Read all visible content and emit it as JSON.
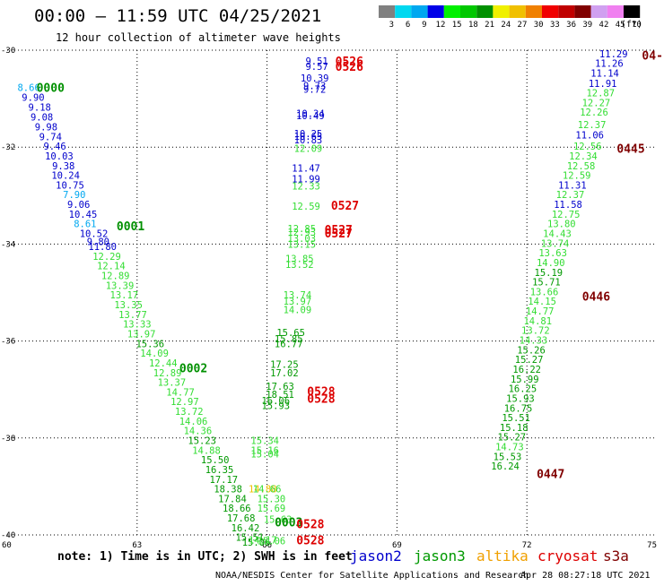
{
  "header": {
    "title": "00:00 – 11:59 UTC 04/25/2021",
    "subtitle": "12 hour collection of altimeter wave heights"
  },
  "color_scale": {
    "labels": [
      "3",
      "6",
      "9",
      "12",
      "15",
      "18",
      "21",
      "24",
      "27",
      "30",
      "33",
      "36",
      "39",
      "42",
      "45",
      "70"
    ],
    "unit": "(ft)",
    "colors": [
      "#808080",
      "#00d8f0",
      "#00a8f0",
      "#0000e8",
      "#00f000",
      "#00c800",
      "#009000",
      "#f0f000",
      "#f0c000",
      "#f08000",
      "#f00000",
      "#c00000",
      "#800000",
      "#d0a0f0",
      "#f080f0",
      "#000000"
    ]
  },
  "footer": {
    "note": "note: 1) Time is in UTC; 2) SWH is in feet",
    "credit": "NOAA/NESDIS Center for Satellite Applications and Research",
    "timestamp": "Apr 28 08:27:18 UTC 2021"
  },
  "chart_data": {
    "type": "scatter",
    "xlim": [
      60,
      75
    ],
    "ylim": [
      -40,
      -30
    ],
    "x_ticks": [
      60,
      63,
      66,
      69,
      72,
      75
    ],
    "y_ticks": [
      -30,
      -32,
      -34,
      -36,
      -38,
      -40
    ],
    "grid": true,
    "legend_placement": "bottom-right",
    "series": [
      {
        "name": "jason2",
        "color": "#0000cc"
      },
      {
        "name": "jason3",
        "color": "#009900"
      },
      {
        "name": "altika",
        "color": "#f0a000"
      },
      {
        "name": "cryosat",
        "color": "#dd0000"
      },
      {
        "name": "s3a",
        "color": "#800000"
      }
    ],
    "track_labels": [
      {
        "text": "0000",
        "x": 61.0,
        "y": -30.77,
        "color": "#009000"
      },
      {
        "text": "0001",
        "x": 62.85,
        "y": -33.62,
        "color": "#009000"
      },
      {
        "text": "0002",
        "x": 64.3,
        "y": -36.55,
        "color": "#009000"
      },
      {
        "text": "0003",
        "x": 66.5,
        "y": -39.73,
        "color": "#009000"
      },
      {
        "text": "0445",
        "x": 74.4,
        "y": -32.02,
        "color": "#800000"
      },
      {
        "text": "0446",
        "x": 73.6,
        "y": -35.07,
        "color": "#800000"
      },
      {
        "text": "0447",
        "x": 72.55,
        "y": -38.73,
        "color": "#800000"
      },
      {
        "text": "04-",
        "x": 74.9,
        "y": -30.1,
        "color": "#800000"
      },
      {
        "text": "0526",
        "x": 67.9,
        "y": -30.22,
        "color": "#dd0000"
      },
      {
        "text": "0526",
        "x": 67.9,
        "y": -30.33,
        "color": "#dd0000"
      },
      {
        "text": "0527",
        "x": 67.8,
        "y": -33.2,
        "color": "#dd0000"
      },
      {
        "text": "0527",
        "x": 67.65,
        "y": -33.7,
        "color": "#dd0000"
      },
      {
        "text": "0527",
        "x": 67.65,
        "y": -33.77,
        "color": "#dd0000"
      },
      {
        "text": "0528",
        "x": 67.25,
        "y": -37.03,
        "color": "#dd0000"
      },
      {
        "text": "0528",
        "x": 67.25,
        "y": -37.18,
        "color": "#dd0000"
      },
      {
        "text": "0528",
        "x": 67.0,
        "y": -39.77,
        "color": "#dd0000"
      },
      {
        "text": "0528",
        "x": 67.0,
        "y": -40.1,
        "color": "#dd0000"
      }
    ],
    "points": [
      {
        "x": 60.5,
        "y": -30.77,
        "v": "8.66",
        "c": "#00a8f0"
      },
      {
        "x": 60.6,
        "y": -30.97,
        "v": "9.90",
        "c": "#0000cc"
      },
      {
        "x": 60.75,
        "y": -31.17,
        "v": "9.18",
        "c": "#0000cc"
      },
      {
        "x": 60.8,
        "y": -31.38,
        "v": "9.08",
        "c": "#0000cc"
      },
      {
        "x": 60.9,
        "y": -31.58,
        "v": "9.98",
        "c": "#0000cc"
      },
      {
        "x": 61.0,
        "y": -31.78,
        "v": "9.74",
        "c": "#0000cc"
      },
      {
        "x": 61.1,
        "y": -31.98,
        "v": "9.46",
        "c": "#0000cc"
      },
      {
        "x": 61.2,
        "y": -32.18,
        "v": "10.03",
        "c": "#0000cc"
      },
      {
        "x": 61.3,
        "y": -32.38,
        "v": "9.38",
        "c": "#0000cc"
      },
      {
        "x": 61.35,
        "y": -32.58,
        "v": "10.24",
        "c": "#0000cc"
      },
      {
        "x": 61.45,
        "y": -32.78,
        "v": "10.75",
        "c": "#0000cc"
      },
      {
        "x": 61.55,
        "y": -32.98,
        "v": "7.90",
        "c": "#00a8f0"
      },
      {
        "x": 61.65,
        "y": -33.18,
        "v": "9.06",
        "c": "#0000cc"
      },
      {
        "x": 61.75,
        "y": -33.38,
        "v": "10.45",
        "c": "#0000cc"
      },
      {
        "x": 61.8,
        "y": -33.58,
        "v": "8.61",
        "c": "#00a8f0"
      },
      {
        "x": 62.0,
        "y": -33.78,
        "v": "10.52",
        "c": "#0000cc"
      },
      {
        "x": 62.1,
        "y": -33.95,
        "v": "9.80",
        "c": "#0000cc"
      },
      {
        "x": 62.2,
        "y": -34.05,
        "v": "11.80",
        "c": "#0000cc"
      },
      {
        "x": 62.3,
        "y": -34.25,
        "v": "12.29",
        "c": "#33dd33"
      },
      {
        "x": 62.4,
        "y": -34.45,
        "v": "12.14",
        "c": "#33dd33"
      },
      {
        "x": 62.5,
        "y": -34.65,
        "v": "12.89",
        "c": "#33dd33"
      },
      {
        "x": 62.6,
        "y": -34.85,
        "v": "13.39",
        "c": "#33dd33"
      },
      {
        "x": 62.7,
        "y": -35.05,
        "v": "13.17",
        "c": "#33dd33"
      },
      {
        "x": 62.8,
        "y": -35.25,
        "v": "13.35",
        "c": "#33dd33"
      },
      {
        "x": 62.9,
        "y": -35.45,
        "v": "13.77",
        "c": "#33dd33"
      },
      {
        "x": 63.0,
        "y": -35.65,
        "v": "13.33",
        "c": "#33dd33"
      },
      {
        "x": 63.1,
        "y": -35.85,
        "v": "13.97",
        "c": "#33dd33"
      },
      {
        "x": 63.3,
        "y": -36.05,
        "v": "15.36",
        "c": "#009900"
      },
      {
        "x": 63.4,
        "y": -36.25,
        "v": "14.09",
        "c": "#33dd33"
      },
      {
        "x": 63.6,
        "y": -36.45,
        "v": "12.44",
        "c": "#33dd33"
      },
      {
        "x": 63.7,
        "y": -36.65,
        "v": "12.89",
        "c": "#33dd33"
      },
      {
        "x": 63.8,
        "y": -36.85,
        "v": "13.37",
        "c": "#33dd33"
      },
      {
        "x": 64.0,
        "y": -37.05,
        "v": "14.77",
        "c": "#33dd33"
      },
      {
        "x": 64.1,
        "y": -37.25,
        "v": "12.97",
        "c": "#33dd33"
      },
      {
        "x": 64.2,
        "y": -37.45,
        "v": "13.72",
        "c": "#33dd33"
      },
      {
        "x": 64.3,
        "y": -37.65,
        "v": "14.06",
        "c": "#33dd33"
      },
      {
        "x": 64.4,
        "y": -37.85,
        "v": "14.36",
        "c": "#33dd33"
      },
      {
        "x": 64.5,
        "y": -38.05,
        "v": "15.23",
        "c": "#009900"
      },
      {
        "x": 64.6,
        "y": -38.25,
        "v": "14.88",
        "c": "#33dd33"
      },
      {
        "x": 64.8,
        "y": -38.45,
        "v": "15.50",
        "c": "#009900"
      },
      {
        "x": 64.9,
        "y": -38.65,
        "v": "16.35",
        "c": "#009900"
      },
      {
        "x": 65.0,
        "y": -38.85,
        "v": "17.17",
        "c": "#009900"
      },
      {
        "x": 65.1,
        "y": -39.05,
        "v": "18.38",
        "c": "#009900"
      },
      {
        "x": 65.2,
        "y": -39.25,
        "v": "17.84",
        "c": "#009900"
      },
      {
        "x": 65.3,
        "y": -39.45,
        "v": "18.66",
        "c": "#009900"
      },
      {
        "x": 65.4,
        "y": -39.65,
        "v": "17.68",
        "c": "#009900"
      },
      {
        "x": 65.5,
        "y": -39.85,
        "v": "16.42",
        "c": "#009900"
      },
      {
        "x": 65.6,
        "y": -40.05,
        "v": "15.51",
        "c": "#009900"
      },
      {
        "x": 65.75,
        "y": -40.15,
        "v": "15.06",
        "c": "#009900"
      },
      {
        "x": 65.9,
        "y": -40.1,
        "v": "14.17",
        "c": "#33dd33"
      },
      {
        "x": 66.1,
        "y": -39.25,
        "v": "15.30",
        "c": "#33dd33"
      },
      {
        "x": 66.1,
        "y": -39.45,
        "v": "15.69",
        "c": "#33dd33"
      },
      {
        "x": 66.25,
        "y": -39.68,
        "v": "15.63",
        "c": "#33dd33"
      },
      {
        "x": 66.1,
        "y": -40.12,
        "v": "15.06",
        "c": "#33dd33"
      },
      {
        "x": 65.9,
        "y": -39.05,
        "v": "14.88",
        "c": "#f0c000"
      },
      {
        "x": 66.0,
        "y": -39.05,
        "v": "14.66",
        "c": "#33dd33"
      },
      {
        "x": 65.95,
        "y": -38.05,
        "v": "15.34",
        "c": "#33dd33"
      },
      {
        "x": 65.95,
        "y": -38.25,
        "v": "15.16",
        "c": "#33dd33"
      },
      {
        "x": 65.95,
        "y": -38.33,
        "v": "15.04",
        "c": "#33dd33"
      },
      {
        "x": 66.2,
        "y": -37.23,
        "v": "16.06",
        "c": "#009900"
      },
      {
        "x": 66.2,
        "y": -37.33,
        "v": "15.93",
        "c": "#009900"
      },
      {
        "x": 66.3,
        "y": -36.93,
        "v": "17.63",
        "c": "#009900"
      },
      {
        "x": 66.3,
        "y": -37.1,
        "v": "18.51",
        "c": "#009900"
      },
      {
        "x": 66.4,
        "y": -36.65,
        "v": "17.02",
        "c": "#009900"
      },
      {
        "x": 66.4,
        "y": -36.48,
        "v": "17.25",
        "c": "#009900"
      },
      {
        "x": 66.5,
        "y": -36.05,
        "v": "16.77",
        "c": "#009900"
      },
      {
        "x": 66.5,
        "y": -35.95,
        "v": "15.85",
        "c": "#009900"
      },
      {
        "x": 66.55,
        "y": -35.82,
        "v": "15.65",
        "c": "#009900"
      },
      {
        "x": 66.7,
        "y": -35.35,
        "v": "14.09",
        "c": "#33dd33"
      },
      {
        "x": 66.7,
        "y": -35.18,
        "v": "13.97",
        "c": "#33dd33"
      },
      {
        "x": 66.7,
        "y": -35.05,
        "v": "13.74",
        "c": "#33dd33"
      },
      {
        "x": 66.75,
        "y": -34.42,
        "v": "13.52",
        "c": "#33dd33"
      },
      {
        "x": 66.75,
        "y": -34.3,
        "v": "13.85",
        "c": "#33dd33"
      },
      {
        "x": 66.8,
        "y": -34.0,
        "v": "13.15",
        "c": "#33dd33"
      },
      {
        "x": 66.8,
        "y": -33.88,
        "v": "13.03",
        "c": "#33dd33"
      },
      {
        "x": 66.8,
        "y": -33.75,
        "v": "12.93",
        "c": "#33dd33"
      },
      {
        "x": 66.8,
        "y": -33.68,
        "v": "12.85",
        "c": "#33dd33"
      },
      {
        "x": 66.9,
        "y": -33.22,
        "v": "12.59",
        "c": "#33dd33"
      },
      {
        "x": 66.9,
        "y": -32.8,
        "v": "12.33",
        "c": "#33dd33"
      },
      {
        "x": 66.9,
        "y": -32.65,
        "v": "11.99",
        "c": "#0000cc"
      },
      {
        "x": 66.9,
        "y": -32.43,
        "v": "11.47",
        "c": "#0000cc"
      },
      {
        "x": 66.95,
        "y": -32.02,
        "v": "12.09",
        "c": "#33dd33"
      },
      {
        "x": 66.95,
        "y": -31.85,
        "v": "10.83",
        "c": "#0000cc"
      },
      {
        "x": 66.95,
        "y": -31.77,
        "v": "10.65",
        "c": "#0000cc"
      },
      {
        "x": 66.95,
        "y": -31.72,
        "v": "10.25",
        "c": "#0000cc"
      },
      {
        "x": 67.0,
        "y": -31.35,
        "v": "10.49",
        "c": "#0000cc"
      },
      {
        "x": 67.0,
        "y": -31.3,
        "v": "10.34",
        "c": "#0000cc"
      },
      {
        "x": 67.1,
        "y": -30.8,
        "v": "9.72",
        "c": "#0000cc"
      },
      {
        "x": 67.1,
        "y": -30.73,
        "v": "9.73",
        "c": "#0000cc"
      },
      {
        "x": 67.1,
        "y": -30.57,
        "v": "10.39",
        "c": "#0000cc"
      },
      {
        "x": 67.15,
        "y": -30.33,
        "v": "9.57",
        "c": "#0000cc"
      },
      {
        "x": 67.15,
        "y": -30.22,
        "v": "9.51",
        "c": "#0000cc"
      },
      {
        "x": 74.0,
        "y": -30.07,
        "v": "11.29",
        "c": "#0000cc"
      },
      {
        "x": 73.9,
        "y": -30.27,
        "v": "11.26",
        "c": "#0000cc"
      },
      {
        "x": 73.8,
        "y": -30.47,
        "v": "11.14",
        "c": "#0000cc"
      },
      {
        "x": 73.75,
        "y": -30.68,
        "v": "11.91",
        "c": "#0000cc"
      },
      {
        "x": 73.7,
        "y": -30.88,
        "v": "12.87",
        "c": "#33dd33"
      },
      {
        "x": 73.6,
        "y": -31.08,
        "v": "12.27",
        "c": "#33dd33"
      },
      {
        "x": 73.55,
        "y": -31.28,
        "v": "12.26",
        "c": "#33dd33"
      },
      {
        "x": 73.5,
        "y": -31.53,
        "v": "12.37",
        "c": "#33dd33"
      },
      {
        "x": 73.45,
        "y": -31.75,
        "v": "11.06",
        "c": "#0000cc"
      },
      {
        "x": 73.4,
        "y": -31.98,
        "v": "12.56",
        "c": "#33dd33"
      },
      {
        "x": 73.3,
        "y": -32.18,
        "v": "12.34",
        "c": "#33dd33"
      },
      {
        "x": 73.25,
        "y": -32.38,
        "v": "12.58",
        "c": "#33dd33"
      },
      {
        "x": 73.15,
        "y": -32.58,
        "v": "12.59",
        "c": "#33dd33"
      },
      {
        "x": 73.05,
        "y": -32.78,
        "v": "11.31",
        "c": "#0000cc"
      },
      {
        "x": 73.0,
        "y": -32.98,
        "v": "12.37",
        "c": "#33dd33"
      },
      {
        "x": 72.95,
        "y": -33.18,
        "v": "11.58",
        "c": "#0000cc"
      },
      {
        "x": 72.9,
        "y": -33.38,
        "v": "12.75",
        "c": "#33dd33"
      },
      {
        "x": 72.8,
        "y": -33.58,
        "v": "13.80",
        "c": "#33dd33"
      },
      {
        "x": 72.7,
        "y": -33.78,
        "v": "14.43",
        "c": "#33dd33"
      },
      {
        "x": 72.65,
        "y": -33.98,
        "v": "13.74",
        "c": "#33dd33"
      },
      {
        "x": 72.6,
        "y": -34.18,
        "v": "13.63",
        "c": "#33dd33"
      },
      {
        "x": 72.55,
        "y": -34.38,
        "v": "14.90",
        "c": "#33dd33"
      },
      {
        "x": 72.5,
        "y": -34.58,
        "v": "15.19",
        "c": "#009900"
      },
      {
        "x": 72.45,
        "y": -34.78,
        "v": "15.71",
        "c": "#009900"
      },
      {
        "x": 72.4,
        "y": -34.98,
        "v": "13.66",
        "c": "#33dd33"
      },
      {
        "x": 72.35,
        "y": -35.18,
        "v": "14.15",
        "c": "#33dd33"
      },
      {
        "x": 72.3,
        "y": -35.38,
        "v": "14.77",
        "c": "#33dd33"
      },
      {
        "x": 72.25,
        "y": -35.58,
        "v": "14.81",
        "c": "#33dd33"
      },
      {
        "x": 72.2,
        "y": -35.78,
        "v": "13.72",
        "c": "#33dd33"
      },
      {
        "x": 72.15,
        "y": -35.98,
        "v": "14.33",
        "c": "#33dd33"
      },
      {
        "x": 72.1,
        "y": -36.18,
        "v": "15.26",
        "c": "#009900"
      },
      {
        "x": 72.05,
        "y": -36.38,
        "v": "15.27",
        "c": "#009900"
      },
      {
        "x": 72.0,
        "y": -36.58,
        "v": "16.22",
        "c": "#009900"
      },
      {
        "x": 71.95,
        "y": -36.78,
        "v": "15.99",
        "c": "#009900"
      },
      {
        "x": 71.9,
        "y": -36.98,
        "v": "16.25",
        "c": "#009900"
      },
      {
        "x": 71.85,
        "y": -37.18,
        "v": "15.93",
        "c": "#009900"
      },
      {
        "x": 71.8,
        "y": -37.38,
        "v": "16.75",
        "c": "#009900"
      },
      {
        "x": 71.75,
        "y": -37.58,
        "v": "15.51",
        "c": "#009900"
      },
      {
        "x": 71.7,
        "y": -37.78,
        "v": "15.18",
        "c": "#009900"
      },
      {
        "x": 71.65,
        "y": -37.98,
        "v": "15.27",
        "c": "#009900"
      },
      {
        "x": 71.6,
        "y": -38.18,
        "v": "14.73",
        "c": "#33dd33"
      },
      {
        "x": 71.55,
        "y": -38.38,
        "v": "15.53",
        "c": "#009900"
      },
      {
        "x": 71.5,
        "y": -38.58,
        "v": "16.24",
        "c": "#009900"
      }
    ]
  }
}
